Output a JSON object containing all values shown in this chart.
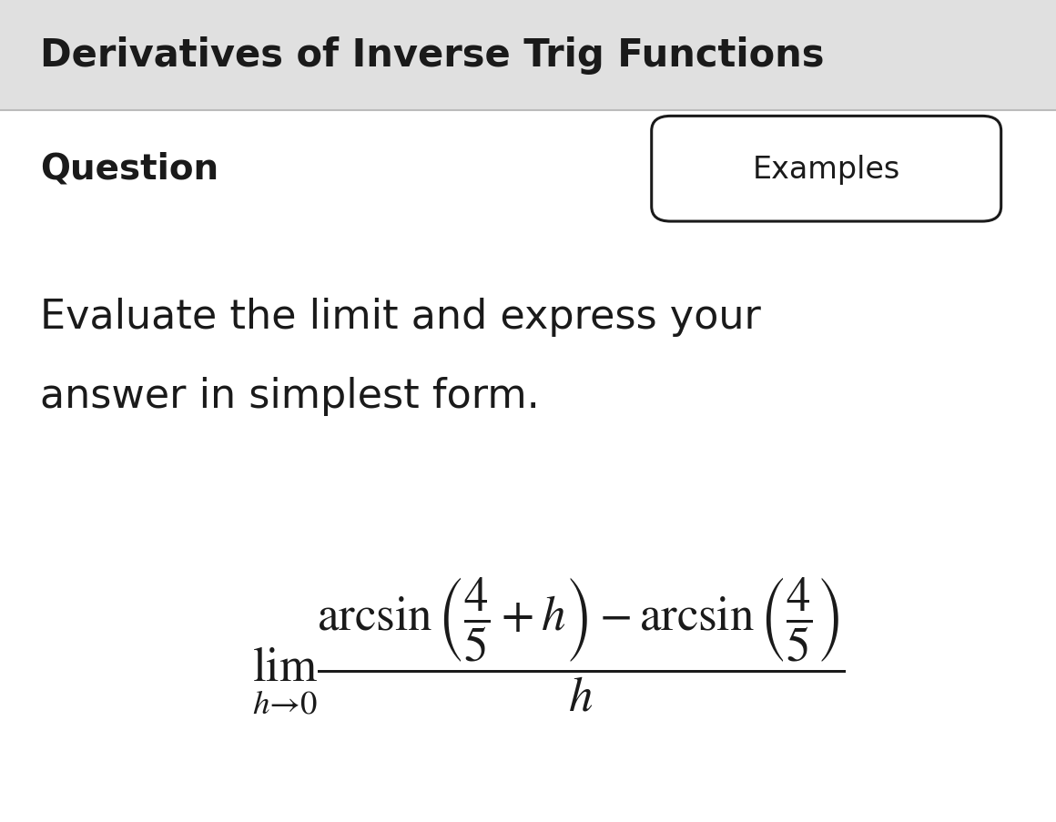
{
  "title": "Derivatives of Inverse Trig Functions",
  "title_fontsize": 30,
  "title_color": "#1a1a1a",
  "title_bg_color": "#e0e0e0",
  "main_bg_color": "#f0f0f0",
  "content_bg_color": "#ffffff",
  "question_label": "Question",
  "examples_label": "Examples",
  "question_fontsize": 28,
  "examples_fontsize": 24,
  "body_text_line1": "Evaluate the limit and express your",
  "body_text_line2": "answer in simplest form.",
  "body_fontsize": 32,
  "formula_mathtext": "$\\lim_{h\\to 0} \\dfrac{\\arcsin\\left(\\dfrac{4}{5} + h\\right) - \\arcsin\\left(\\dfrac{4}{5}\\right)}{h}$",
  "formula_fontsize": 38,
  "separator_color": "#bbbbbb",
  "text_color": "#1a1a1a",
  "box_color": "#1a1a1a"
}
